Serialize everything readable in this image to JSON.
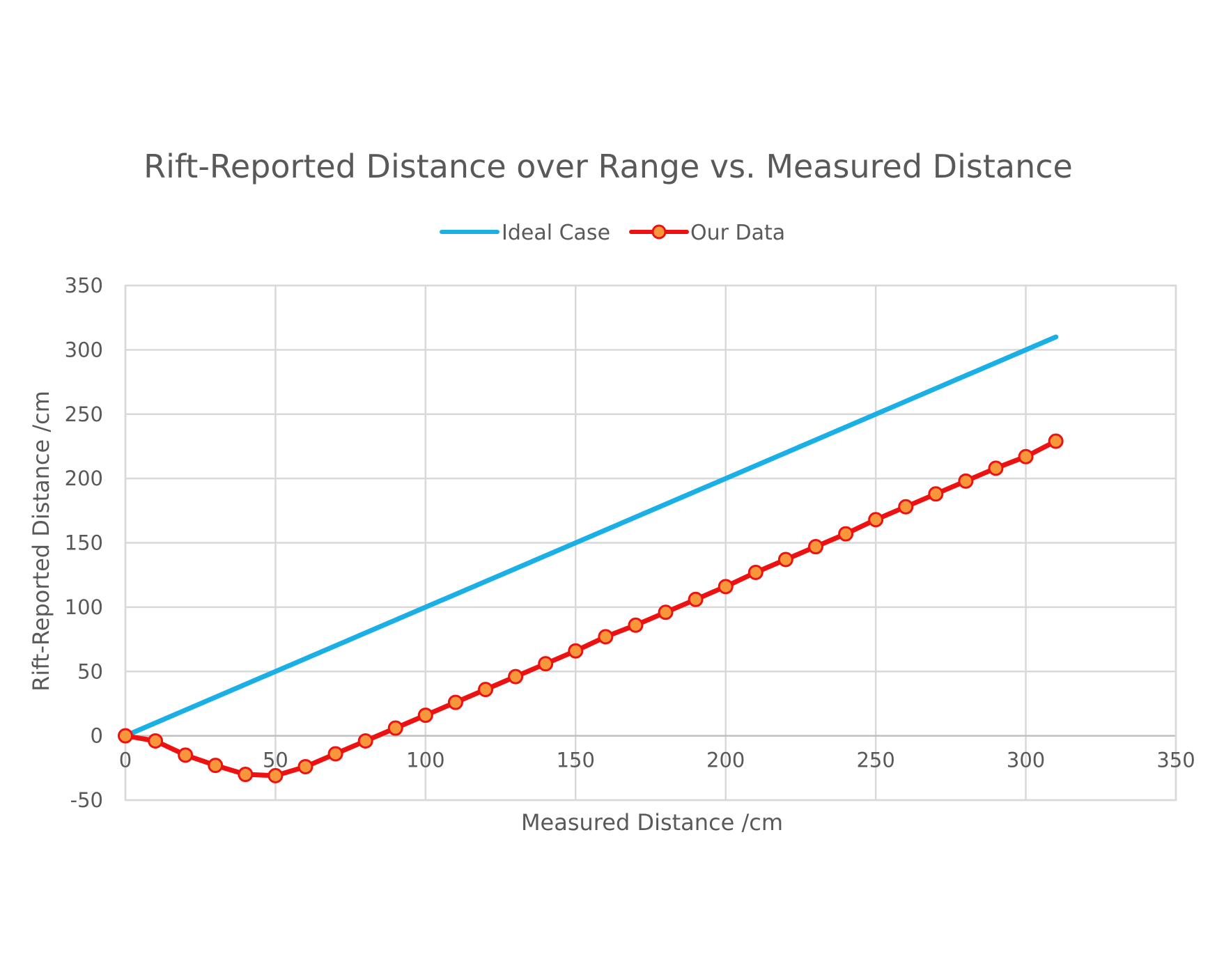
{
  "chart_data": {
    "type": "line",
    "title": "Rift-Reported Distance over Range vs. Measured Distance",
    "xlabel": "Measured Distance /cm",
    "ylabel": "Rift-Reported Distance /cm",
    "xlim": [
      0,
      350
    ],
    "ylim": [
      -50,
      350
    ],
    "x_ticks": [
      "0",
      "50",
      "100",
      "150",
      "200",
      "250",
      "300",
      "350"
    ],
    "y_ticks": [
      "-50",
      "0",
      "50",
      "100",
      "150",
      "200",
      "250",
      "300",
      "350"
    ],
    "grid": true,
    "legend_position": "top-center",
    "series": [
      {
        "name": "Ideal Case",
        "color": "#1ab0e6",
        "marker": "none",
        "x": [
          0,
          310
        ],
        "y": [
          0,
          310
        ]
      },
      {
        "name": "Our Data",
        "color": "#ee1111",
        "marker": "circle",
        "marker_fill": "#f7963a",
        "x": [
          0,
          10,
          20,
          30,
          40,
          50,
          60,
          70,
          80,
          90,
          100,
          110,
          120,
          130,
          140,
          150,
          160,
          170,
          180,
          190,
          200,
          210,
          220,
          230,
          240,
          250,
          260,
          270,
          280,
          290,
          300,
          310
        ],
        "y": [
          0,
          -4,
          -15,
          -23,
          -30,
          -31,
          -24,
          -14,
          -4,
          6,
          16,
          26,
          36,
          46,
          56,
          66,
          77,
          86,
          96,
          106,
          116,
          127,
          137,
          147,
          157,
          168,
          178,
          188,
          198,
          208,
          217,
          229
        ]
      }
    ]
  }
}
